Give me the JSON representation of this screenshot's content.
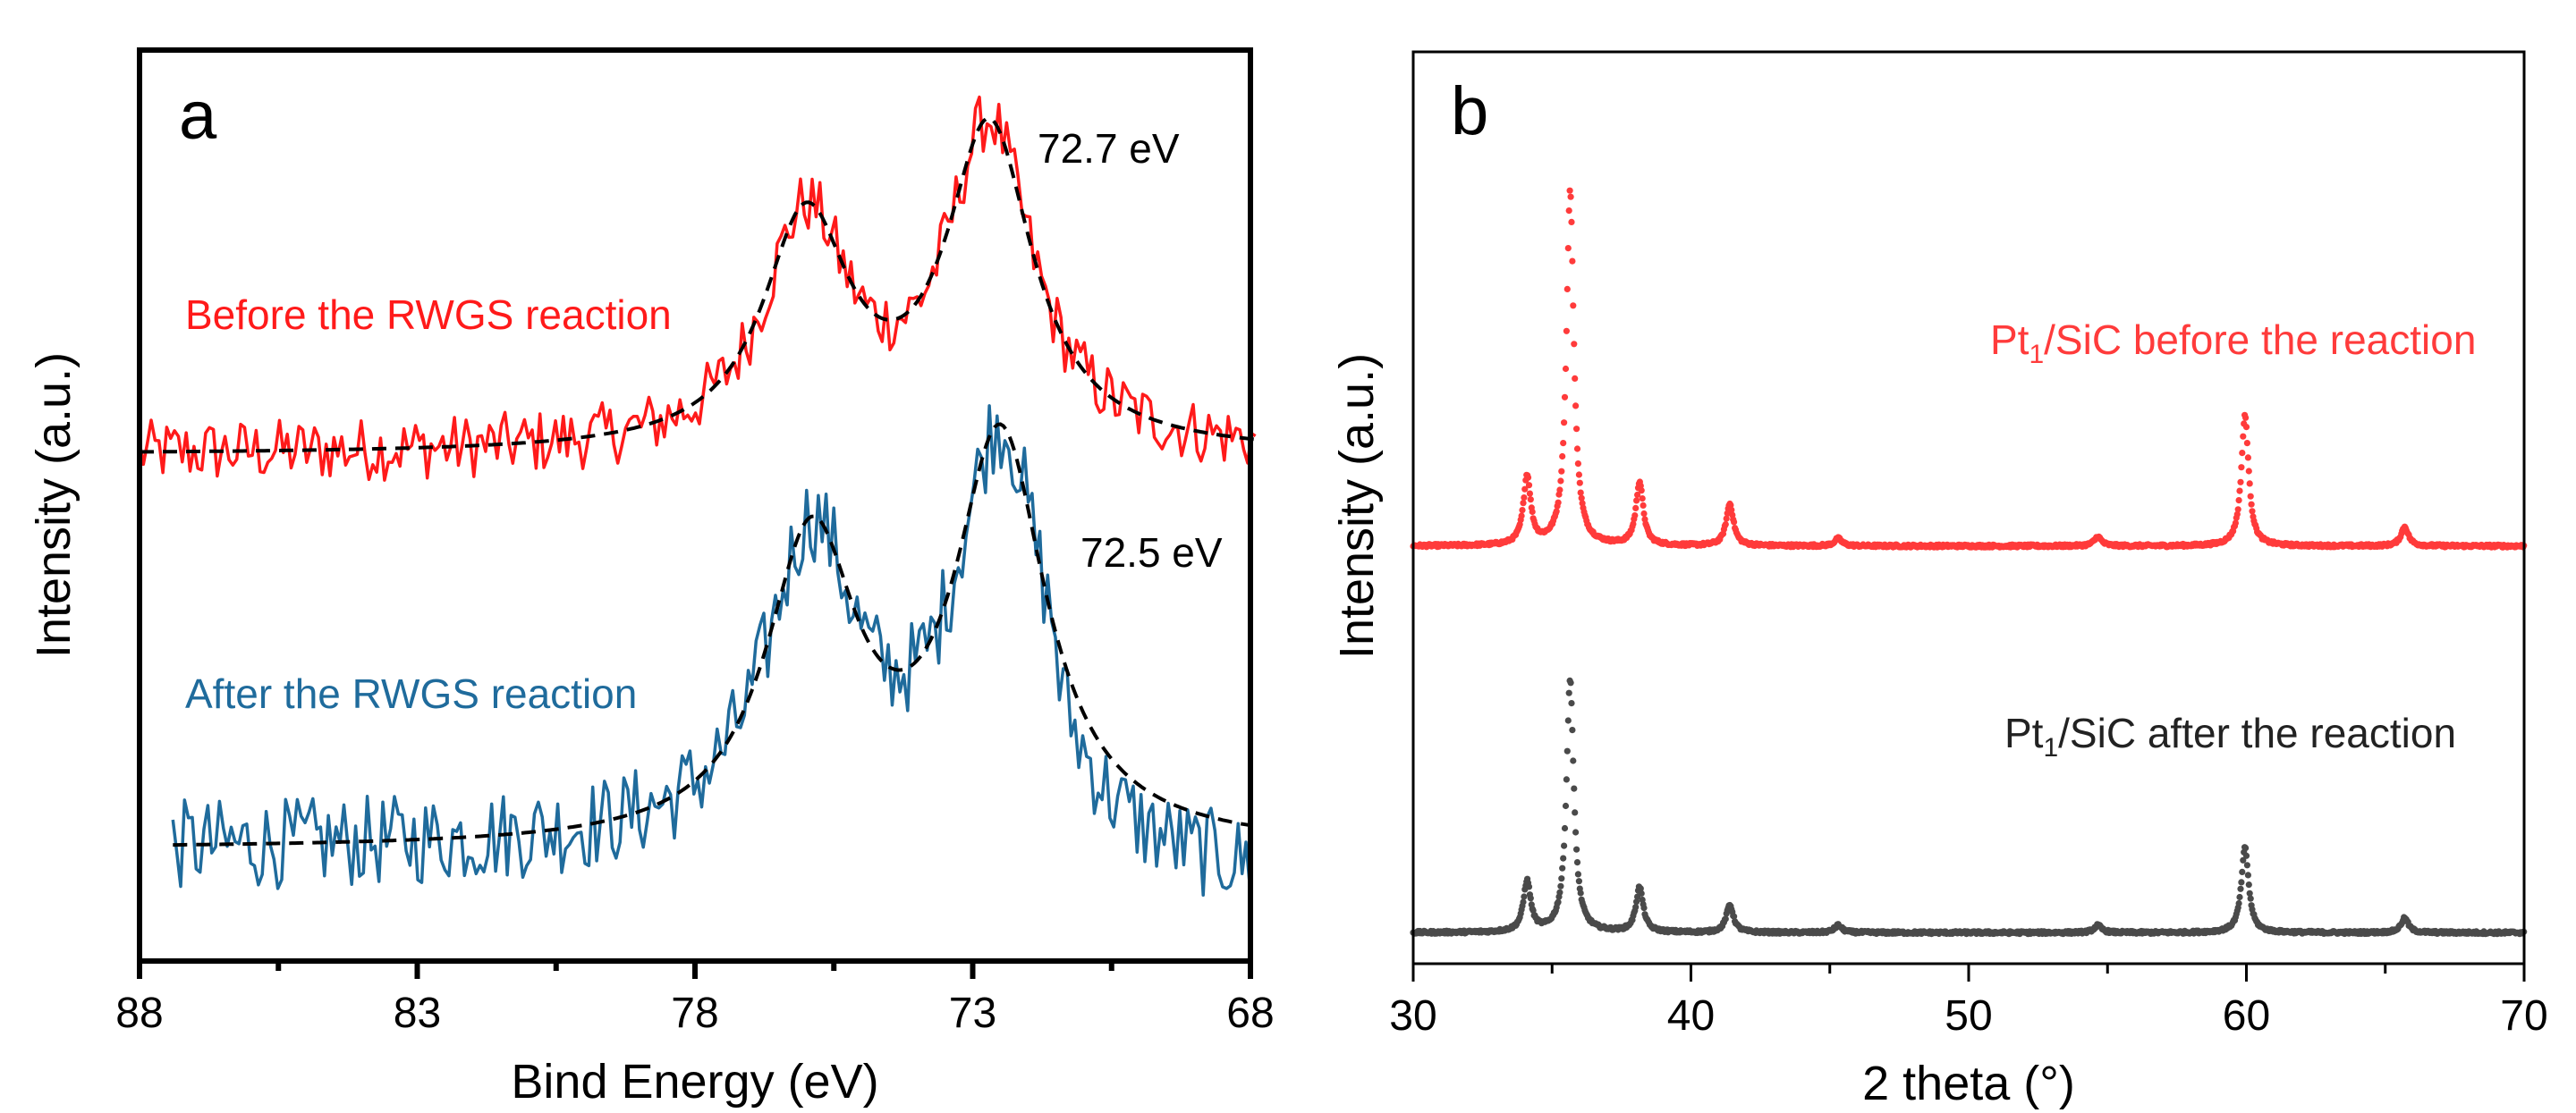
{
  "chart_data": [
    {
      "panel": "a",
      "type": "line",
      "xlabel": "Bind Energy (eV)",
      "ylabel": "Intensity (a.u.)",
      "xlim": [
        88,
        68
      ],
      "ylim": [
        0,
        1
      ],
      "x_ticks": [
        "88",
        "83",
        "78",
        "73",
        "68"
      ],
      "x_tick_values": [
        88,
        83,
        78,
        73,
        68
      ],
      "x_minor_tick_values": [
        85.5,
        80.5,
        75.5,
        70.5
      ],
      "grid": false,
      "annotations": [
        "72.7 eV",
        "72.5 eV"
      ],
      "series": [
        {
          "name": "Before the RWGS reaction",
          "color": "#ff1a1a",
          "x_range": [
            88,
            67.9
          ],
          "baseline": 0.556,
          "peaks": [
            {
              "center": 76.0,
              "amplitude": 0.25,
              "hwhm": 0.95
            },
            {
              "center": 72.7,
              "amplitude": 0.35,
              "hwhm": 0.95
            }
          ],
          "noise_amplitude": 0.035,
          "fit_style": "black dashed"
        },
        {
          "name": "After the RWGS reaction",
          "color": "#1f6b9c",
          "x_range": [
            87.4,
            68
          ],
          "baseline": 0.123,
          "peaks": [
            {
              "center": 75.9,
              "amplitude": 0.33,
              "hwhm": 1.0
            },
            {
              "center": 72.5,
              "amplitude": 0.44,
              "hwhm": 1.0
            }
          ],
          "noise_amplitude": 0.05,
          "fit_style": "black dashed"
        }
      ]
    },
    {
      "panel": "b",
      "type": "scatter",
      "xlabel": "2 theta (°)",
      "ylabel": "Intensity (a.u.)",
      "xlim": [
        30,
        70
      ],
      "ylim": [
        0,
        1
      ],
      "x_ticks": [
        "30",
        "40",
        "50",
        "60",
        "70"
      ],
      "x_tick_values": [
        30,
        40,
        50,
        60,
        70
      ],
      "x_minor_tick_values": [
        35,
        45,
        55,
        65
      ],
      "grid": false,
      "peak_positions": [
        34.1,
        35.65,
        38.15,
        41.4,
        45.3,
        54.65,
        59.95,
        65.7
      ],
      "series": [
        {
          "name": "Pt1/SiC before the reaction",
          "label_main": "Pt",
          "label_sub": "1",
          "label_rest": "/SiC before the reaction",
          "color": "#ff3b3b",
          "baseline": 0.458,
          "peak_heights": [
            0.075,
            0.389,
            0.069,
            0.046,
            0.008,
            0.01,
            0.143,
            0.021
          ],
          "hwhm": 0.16
        },
        {
          "name": "Pt1/SiC after the reaction",
          "label_main": "Pt",
          "label_sub": "1",
          "label_rest": "/SiC after the reaction",
          "color": "#4a4a4a",
          "baseline": 0.034,
          "peak_heights": [
            0.055,
            0.277,
            0.049,
            0.03,
            0.008,
            0.008,
            0.093,
            0.016
          ],
          "hwhm": 0.16
        }
      ]
    }
  ],
  "panel_labels": {
    "a": "a",
    "b": "b"
  }
}
